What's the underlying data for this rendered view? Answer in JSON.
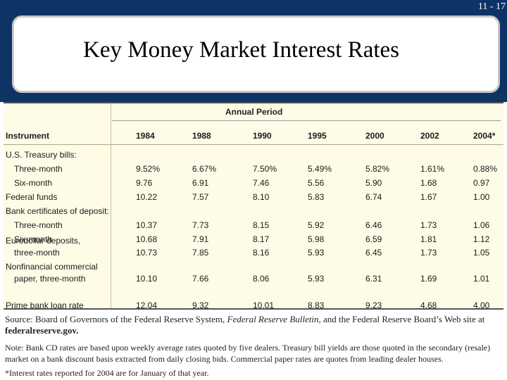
{
  "slide": {
    "number": "11 - 17",
    "title": "Key Money Market Interest Rates"
  },
  "table": {
    "group_header": "Annual Period",
    "instrument_header": "Instrument",
    "years": [
      "1984",
      "1988",
      "1990",
      "1995",
      "2000",
      "2002",
      "2004*"
    ],
    "rows": [
      {
        "label": "U.S. Treasury bills:",
        "indent": false,
        "values": []
      },
      {
        "label": "Three-month",
        "indent": true,
        "values": [
          "9.52%",
          "6.67%",
          "7.50%",
          "5.49%",
          "5.82%",
          "1.61%",
          "0.88%"
        ]
      },
      {
        "label": "Six-month",
        "indent": true,
        "values": [
          "9.76",
          "6.91",
          "7.46",
          "5.56",
          "5.90",
          "1.68",
          "0.97"
        ]
      },
      {
        "label": "Federal funds",
        "indent": false,
        "values": [
          "10.22",
          "7.57",
          "8.10",
          "5.83",
          "6.74",
          "1.67",
          "1.00"
        ]
      },
      {
        "label": "Bank certificates of deposit:",
        "indent": false,
        "values": []
      },
      {
        "label": "Three-month",
        "indent": true,
        "values": [
          "10.37",
          "7.73",
          "8.15",
          "5.92",
          "6.46",
          "1.73",
          "1.06"
        ]
      },
      {
        "label": "Six-month",
        "indent": true,
        "values": [
          "10.68",
          "7.91",
          "8.17",
          "5.98",
          "6.59",
          "1.81",
          "1.12"
        ]
      },
      {
        "label": "Eurodollar deposits,",
        "label2": "three-month",
        "indent": false,
        "values": [
          "10.73",
          "7.85",
          "8.16",
          "5.93",
          "6.45",
          "1.73",
          "1.05"
        ]
      },
      {
        "label": "Nonfinancial commercial",
        "label2": "paper, three-month",
        "indent": false,
        "values": [
          "10.10",
          "7.66",
          "8.06",
          "5.93",
          "6.31",
          "1.69",
          "1.01"
        ]
      },
      {
        "label": "Prime bank loan rate",
        "indent": false,
        "values": [
          "12.04",
          "9.32",
          "10.01",
          "8.83",
          "9.23",
          "4.68",
          "4.00"
        ]
      }
    ]
  },
  "footer": {
    "source_prefix": "Source: Board of Governors of the Federal Reserve System, ",
    "source_italic": "Federal Reserve Bulletin,",
    "source_suffix": " and the Federal Reserve Board’s Web site at",
    "source_url": "federalreserve.gov.",
    "note": "Note: Bank CD rates are based upon weekly average rates quoted by five dealers. Treasury bill yields are those quoted in the secondary (resale) market on a bank discount basis extracted from daily closing bids. Commercial paper rates are quotes from leading dealer houses.",
    "asterisk_note": "*Interest rates reported for 2004 are for January of that year."
  }
}
